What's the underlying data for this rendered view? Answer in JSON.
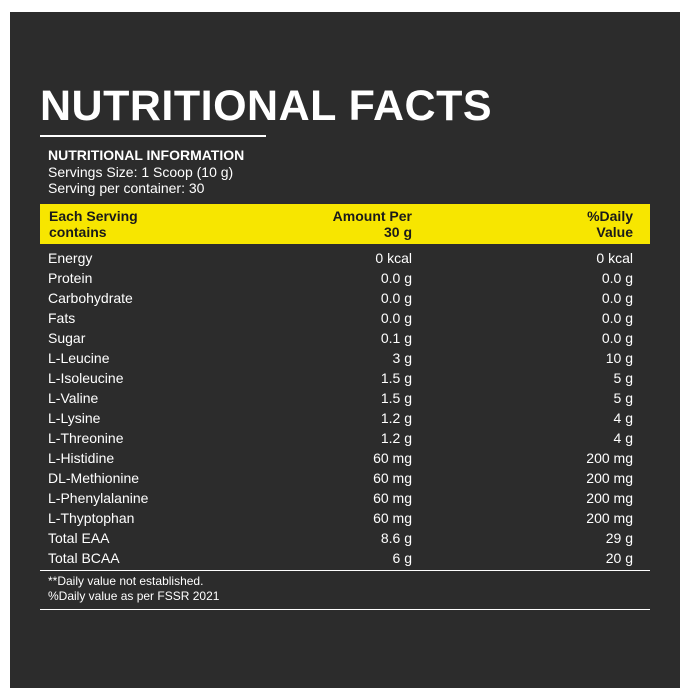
{
  "header": {
    "title": "NUTRITIONAL FACTS"
  },
  "info": {
    "heading": "NUTRITIONAL INFORMATION",
    "lines": [
      "Servings Size: 1 Scoop (10 g)",
      "Serving per container: 30"
    ]
  },
  "table": {
    "header": [
      "Each Serving\ncontains",
      "Amount Per\n30 g",
      "%Daily\nValue"
    ],
    "rows": [
      [
        "Energy",
        "0 kcal",
        "0 kcal"
      ],
      [
        "Protein",
        "0.0 g",
        "0.0 g"
      ],
      [
        "Carbohydrate",
        "0.0 g",
        "0.0 g"
      ],
      [
        "Fats",
        "0.0 g",
        "0.0 g"
      ],
      [
        "Sugar",
        "0.1 g",
        "0.0 g"
      ],
      [
        "L-Leucine",
        "3 g",
        "10 g"
      ],
      [
        "L-Isoleucine",
        "1.5 g",
        "5 g"
      ],
      [
        "L-Valine",
        "1.5 g",
        "5 g"
      ],
      [
        "L-Lysine",
        "1.2 g",
        "4 g"
      ],
      [
        "L-Threonine",
        "1.2 g",
        "4 g"
      ],
      [
        "L-Histidine",
        "60 mg",
        "200 mg"
      ],
      [
        "DL-Methionine",
        "60 mg",
        "200 mg"
      ],
      [
        "L-Phenylalanine",
        "60 mg",
        "200 mg"
      ],
      [
        "L-Thyptophan",
        "60 mg",
        "200 mg"
      ],
      [
        "Total EAA",
        "8.6 g",
        "29 g"
      ],
      [
        "Total BCAA",
        "6 g",
        "20 g"
      ]
    ]
  },
  "footnotes": [
    "**Daily value not established.",
    "%Daily value as per FSSR 2021"
  ]
}
